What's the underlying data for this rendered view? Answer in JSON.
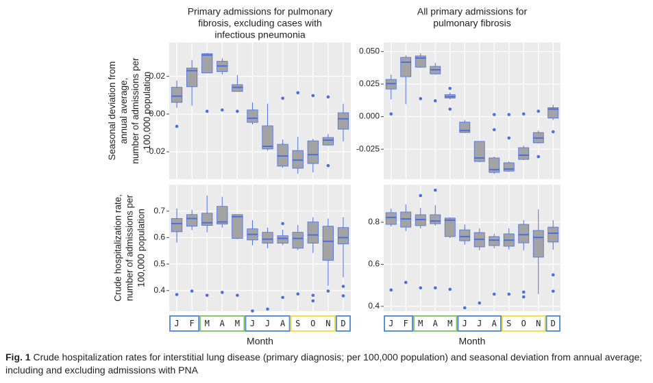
{
  "chart_data": [
    {
      "type": "box",
      "title": [
        "Primary admissions for pulmonary",
        "fibrosis, excluding cases with",
        "infectious pneumonia"
      ],
      "ylabel": [
        "Seasonal deviation from",
        "annual average,",
        "number of admissions per",
        "100,000 population"
      ],
      "ylim": [
        -0.0345,
        0.038
      ],
      "yticks": [
        {
          "value": -0.02,
          "label": "-0.02"
        },
        {
          "value": 0,
          "label": "0.00"
        },
        {
          "value": 0.02,
          "label": "0.02"
        }
      ],
      "grid": true,
      "box_color": "#a3a3a3",
      "line_color": "#4a6ee0",
      "low": [
        0.0033,
        0.0044,
        0.0218,
        0.021,
        0.012,
        -0.0055,
        -0.0193,
        -0.0284,
        -0.0316,
        -0.0309,
        -0.0167,
        -0.0145
      ],
      "q1": [
        0.0062,
        0.0145,
        0.0218,
        0.0225,
        0.012,
        -0.0044,
        -0.0185,
        -0.0276,
        -0.0287,
        -0.0262,
        -0.0164,
        -0.008
      ],
      "median": [
        0.0095,
        0.023,
        0.0313,
        0.0255,
        0.0142,
        -0.0022,
        -0.0171,
        -0.0222,
        -0.0244,
        -0.0215,
        -0.0138,
        -0.0025
      ],
      "q3": [
        0.0142,
        0.0244,
        0.032,
        0.028,
        0.0156,
        0.0022,
        -0.0062,
        -0.016,
        -0.0193,
        -0.0142,
        -0.0124,
        0.0007
      ],
      "high": [
        0.0178,
        0.0287,
        0.0324,
        0.0295,
        0.0207,
        0.0062,
        0.0055,
        -0.0135,
        -0.012,
        -0.0131,
        -0.0105,
        0.0055
      ],
      "outliers": [
        [
          -0.0065
        ],
        [],
        [
          0.0015
        ],
        [
          0.0022
        ],
        [
          0.0015
        ],
        [],
        [],
        [
          0.0084
        ],
        [
          0.0113
        ],
        [
          0.0098
        ],
        [
          0.0091,
          -0.0273
        ],
        []
      ]
    },
    {
      "type": "box",
      "title": [
        "All primary admissions for",
        "pulmonary fibrosis"
      ],
      "ylim": [
        -0.048,
        0.057
      ],
      "yticks": [
        {
          "value": -0.025,
          "label": "-0.025"
        },
        {
          "value": 0,
          "label": "0.000"
        },
        {
          "value": 0.025,
          "label": "0.025"
        },
        {
          "value": 0.05,
          "label": "0.050"
        }
      ],
      "grid": true,
      "box_color": "#a3a3a3",
      "line_color": "#4a6ee0",
      "low": [
        0.0132,
        0.0095,
        0.0376,
        0.0323,
        0.0132,
        -0.0127,
        -0.0349,
        -0.0439,
        -0.0423,
        -0.0333,
        -0.0206,
        -0.0026
      ],
      "q1": [
        0.0212,
        0.0307,
        0.038,
        0.0328,
        0.0143,
        -0.0122,
        -0.0344,
        -0.0428,
        -0.0418,
        -0.0328,
        -0.0201,
        -0.0011
      ],
      "median": [
        0.0254,
        0.0418,
        0.045,
        0.036,
        0.0153,
        -0.0106,
        -0.0317,
        -0.0407,
        -0.0402,
        -0.0296,
        -0.0164,
        0.0058
      ],
      "q3": [
        0.0286,
        0.0455,
        0.0466,
        0.0386,
        0.0169,
        -0.0042,
        -0.019,
        -0.0317,
        -0.0354,
        -0.0238,
        -0.0122,
        0.0069
      ],
      "high": [
        0.0323,
        0.0471,
        0.0487,
        0.0413,
        0.0185,
        -0.0026,
        -0.019,
        -0.0307,
        -0.0344,
        -0.0222,
        -0.0106,
        0.009
      ],
      "outliers": [
        [
          0.0021
        ],
        [],
        [
          0.0138
        ],
        [
          0.0122
        ],
        [
          0.0217,
          0.0058
        ],
        [],
        [],
        [
          0.0016,
          -0.01
        ],
        [
          0.0016,
          -0.0164
        ],
        [
          0.0021
        ],
        [
          0.0042,
          -0.0307
        ],
        [
          -0.0116
        ]
      ]
    },
    {
      "type": "box",
      "ylabel": [
        "Crude hospitalization rate,",
        "number of admissions per",
        "100,000 population"
      ],
      "xlabel": "Month",
      "categories": [
        "J",
        "F",
        "M",
        "A",
        "M",
        "J",
        "J",
        "A",
        "S",
        "O",
        "N",
        "D"
      ],
      "category_groups": [
        {
          "color": "#5b8fd9",
          "count": 2
        },
        {
          "color": "#8cc66a",
          "count": 3
        },
        {
          "color": "#5b8fd9",
          "count": 3
        },
        {
          "color": "#f0e14a",
          "count": 3
        },
        {
          "color": "#5b8fd9",
          "count": 1
        }
      ],
      "ylim": [
        0.322,
        0.8
      ],
      "yticks": [
        0.4,
        0.5,
        0.6,
        0.7
      ],
      "grid": true,
      "box_color": "#a3a3a3",
      "line_color": "#4a6ee0",
      "low": [
        0.581,
        0.628,
        0.62,
        0.638,
        0.594,
        0.571,
        0.56,
        0.571,
        0.553,
        0.542,
        0.418,
        0.45
      ],
      "q1": [
        0.622,
        0.643,
        0.646,
        0.651,
        0.597,
        0.591,
        0.579,
        0.579,
        0.56,
        0.579,
        0.514,
        0.576
      ],
      "median": [
        0.653,
        0.672,
        0.656,
        0.659,
        0.679,
        0.612,
        0.594,
        0.597,
        0.597,
        0.61,
        0.586,
        0.6
      ],
      "q3": [
        0.672,
        0.687,
        0.692,
        0.718,
        0.687,
        0.633,
        0.62,
        0.607,
        0.62,
        0.659,
        0.643,
        0.638
      ],
      "high": [
        0.71,
        0.705,
        0.759,
        0.754,
        0.687,
        0.666,
        0.638,
        0.63,
        0.648,
        0.677,
        0.672,
        0.677
      ],
      "outliers": [
        [
          0.385
        ],
        [
          0.398
        ],
        [
          0.382
        ],
        [
          0.393
        ],
        [
          0.382
        ],
        [
          0.323
        ],
        [
          0.33
        ],
        [
          0.653,
          0.374
        ],
        [
          0.387
        ],
        [
          0.382,
          0.361
        ],
        [
          0.398
        ],
        [
          0.416,
          0.38
        ]
      ]
    },
    {
      "type": "box",
      "xlabel": "Month",
      "categories": [
        "J",
        "F",
        "M",
        "A",
        "M",
        "J",
        "J",
        "A",
        "S",
        "O",
        "N",
        "D"
      ],
      "category_groups": [
        {
          "color": "#5b8fd9",
          "count": 2
        },
        {
          "color": "#8cc66a",
          "count": 3
        },
        {
          "color": "#5b8fd9",
          "count": 3
        },
        {
          "color": "#f0e14a",
          "count": 3
        },
        {
          "color": "#5b8fd9",
          "count": 1
        }
      ],
      "ylim": [
        0.377,
        0.979
      ],
      "yticks": [
        0.4,
        0.6,
        0.8
      ],
      "grid": true,
      "box_color": "#a3a3a3",
      "line_color": "#4a6ee0",
      "low": [
        0.78,
        0.758,
        0.771,
        0.784,
        0.725,
        0.693,
        0.667,
        0.676,
        0.67,
        0.667,
        0.458,
        0.67
      ],
      "q1": [
        0.79,
        0.777,
        0.784,
        0.793,
        0.732,
        0.712,
        0.683,
        0.689,
        0.686,
        0.702,
        0.634,
        0.706
      ],
      "median": [
        0.823,
        0.816,
        0.813,
        0.806,
        0.81,
        0.732,
        0.719,
        0.715,
        0.715,
        0.741,
        0.728,
        0.748
      ],
      "q3": [
        0.846,
        0.849,
        0.836,
        0.836,
        0.82,
        0.764,
        0.751,
        0.732,
        0.745,
        0.79,
        0.761,
        0.777
      ],
      "high": [
        0.865,
        0.885,
        0.868,
        0.881,
        0.823,
        0.79,
        0.771,
        0.745,
        0.771,
        0.81,
        0.862,
        0.81
      ],
      "outliers": [
        [
          0.478
        ],
        [
          0.514
        ],
        [
          0.927,
          0.488
        ],
        [
          0.953,
          0.488
        ],
        [
          0.481
        ],
        [
          0.393
        ],
        [
          0.416
        ],
        [
          0.458
        ],
        [
          0.458
        ],
        [
          0.468,
          0.445
        ],
        [],
        [
          0.55,
          0.472
        ]
      ]
    }
  ],
  "caption": {
    "label": "Fig. 1",
    "text": "Crude hospitalization rates for interstitial lung disease (primary diagnosis; per 100,000 population) and seasonal deviation from annual average; including and excluding admissions with PNA"
  }
}
